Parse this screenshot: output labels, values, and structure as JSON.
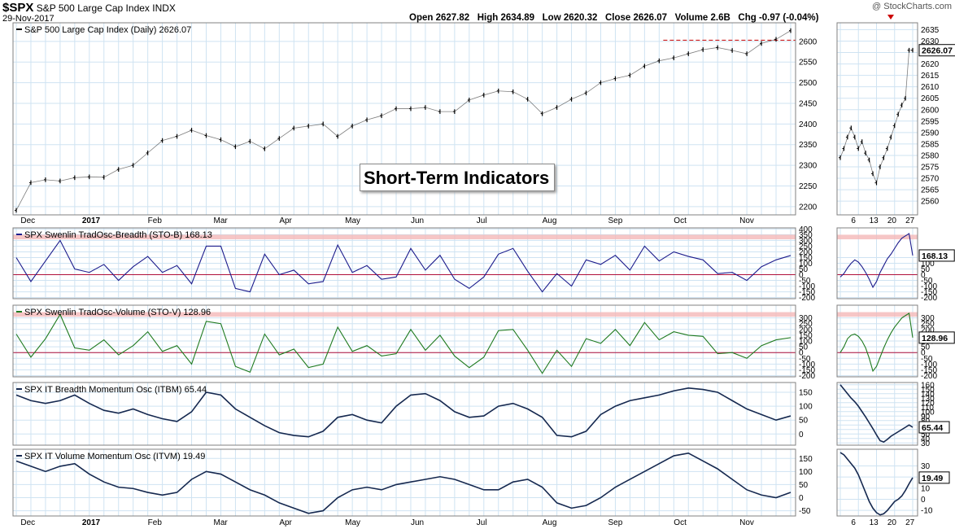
{
  "header": {
    "symbol": "$SPX",
    "name": "S&P 500 Large Cap Index",
    "exchange": "INDX",
    "date": "29-Nov-2017",
    "watermark": "@ StockCharts.com",
    "quote": "Open 2627.82   High 2634.89   Low 2620.32   Close 2626.07   Volume 2.6B   Chg -0.97 (-0.04%)"
  },
  "callout_text": "Short-Term Indicators",
  "colors": {
    "grid": "#cfe3f2",
    "panel_border": "#808080",
    "price": "#000000",
    "sto_b": "#1c1c8c",
    "sto_v": "#1f7a1f",
    "momentum": "#15284f",
    "zero_line": "#b0103a",
    "band": "#f4b8b8",
    "resistance": "#cc0000",
    "down_marker": "#cc0000"
  },
  "chart_data": [
    {
      "id": "price",
      "type": "line",
      "title": "S&P 500 Large Cap Index (Daily) 2626.07",
      "ylim": [
        2180,
        2645
      ],
      "yticks": [
        2200,
        2250,
        2300,
        2350,
        2400,
        2450,
        2500,
        2550,
        2600
      ],
      "value_label": "",
      "resistance_level": 2603,
      "x_labels": [
        "Dec",
        "2017",
        "Feb",
        "Mar",
        "Apr",
        "May",
        "Jun",
        "Jul",
        "Aug",
        "Sep",
        "Oct",
        "Nov"
      ],
      "x_label_pos": [
        0.3,
        4.5,
        9.0,
        13.5,
        18.0,
        22.5,
        27.0,
        31.5,
        36.0,
        40.5,
        45.0,
        49.5
      ],
      "x": [
        0,
        1,
        2,
        3,
        4,
        5,
        6,
        7,
        8,
        9,
        10,
        11,
        12,
        13,
        14,
        15,
        16,
        17,
        18,
        19,
        20,
        21,
        22,
        23,
        24,
        25,
        26,
        27,
        28,
        29,
        30,
        31,
        32,
        33,
        34,
        35,
        36,
        37,
        38,
        39,
        40,
        41,
        42,
        43,
        44,
        45,
        46,
        47,
        48,
        49,
        50,
        51,
        52,
        53
      ],
      "values": [
        2191,
        2258,
        2265,
        2262,
        2270,
        2272,
        2271,
        2290,
        2300,
        2330,
        2360,
        2370,
        2385,
        2372,
        2362,
        2345,
        2358,
        2340,
        2365,
        2390,
        2395,
        2400,
        2370,
        2395,
        2410,
        2420,
        2437,
        2437,
        2440,
        2430,
        2430,
        2458,
        2470,
        2480,
        2478,
        2460,
        2425,
        2440,
        2460,
        2475,
        2500,
        2510,
        2518,
        2540,
        2553,
        2560,
        2570,
        2580,
        2585,
        2578,
        2570,
        2595,
        2605,
        2626
      ]
    },
    {
      "id": "price_zoom",
      "type": "line",
      "ylim": [
        2554,
        2638
      ],
      "yticks": [
        2560,
        2565,
        2570,
        2575,
        2580,
        2585,
        2590,
        2595,
        2600,
        2605,
        2610,
        2615,
        2620,
        2625,
        2630,
        2635
      ],
      "value_label": "2626.07",
      "x_labels": [
        "6",
        "13",
        "20",
        "27"
      ],
      "x_label_pos": [
        3,
        8,
        13,
        18
      ],
      "x": [
        0,
        1,
        2,
        3,
        4,
        5,
        6,
        7,
        8,
        9,
        10,
        11,
        12,
        13,
        14,
        15,
        16,
        17,
        18,
        19,
        20
      ],
      "values": [
        2579,
        2583,
        2588,
        2592,
        2588,
        2583,
        2586,
        2581,
        2578,
        2572,
        2568,
        2575,
        2579,
        2583,
        2588,
        2593,
        2598,
        2602,
        2605,
        2626,
        2626
      ]
    },
    {
      "id": "sto_b",
      "type": "line",
      "title": "SPX Swenlin TradOsc-Breadth (STO-B) 168.13",
      "ylim": [
        -210,
        410
      ],
      "yticks": [
        -200,
        -150,
        -100,
        -50,
        0,
        50,
        100,
        150,
        200,
        250,
        300,
        350,
        400
      ],
      "band": [
        310,
        350
      ],
      "value_label": "",
      "x": [
        0,
        1,
        2,
        3,
        4,
        5,
        6,
        7,
        8,
        9,
        10,
        11,
        12,
        13,
        14,
        15,
        16,
        17,
        18,
        19,
        20,
        21,
        22,
        23,
        24,
        25,
        26,
        27,
        28,
        29,
        30,
        31,
        32,
        33,
        34,
        35,
        36,
        37,
        38,
        39,
        40,
        41,
        42,
        43,
        44,
        45,
        46,
        47,
        48,
        49,
        50,
        51,
        52,
        53
      ],
      "values": [
        150,
        -60,
        120,
        300,
        50,
        20,
        90,
        -50,
        70,
        160,
        20,
        80,
        -80,
        250,
        250,
        -120,
        -150,
        180,
        0,
        40,
        -80,
        -60,
        260,
        20,
        80,
        -40,
        -20,
        230,
        40,
        170,
        -40,
        -120,
        -20,
        180,
        230,
        30,
        -150,
        10,
        -100,
        130,
        90,
        170,
        40,
        250,
        120,
        200,
        160,
        130,
        10,
        20,
        -50,
        70,
        130,
        168
      ]
    },
    {
      "id": "sto_b_zoom",
      "type": "line",
      "ylim": [
        -210,
        410
      ],
      "yticks": [
        -200,
        -150,
        -100,
        -50,
        0,
        50,
        100,
        150
      ],
      "band": [
        310,
        350
      ],
      "value_label": "168.13",
      "x": [
        0,
        1,
        2,
        3,
        4,
        5,
        6,
        7,
        8,
        9,
        10,
        11,
        12,
        13,
        14,
        15,
        16,
        17,
        18,
        19,
        20
      ],
      "values": [
        -20,
        10,
        60,
        100,
        130,
        110,
        70,
        20,
        -40,
        -110,
        -60,
        20,
        80,
        140,
        180,
        230,
        280,
        320,
        340,
        360,
        168
      ]
    },
    {
      "id": "sto_v",
      "type": "line",
      "title": "SPX Swenlin TradOsc-Volume (STO-V) 128.96",
      "ylim": [
        -210,
        410
      ],
      "yticks": [
        -200,
        -150,
        -100,
        -50,
        0,
        50,
        100,
        150,
        200,
        250,
        300
      ],
      "band": [
        310,
        350
      ],
      "value_label": "",
      "x": [
        0,
        1,
        2,
        3,
        4,
        5,
        6,
        7,
        8,
        9,
        10,
        11,
        12,
        13,
        14,
        15,
        16,
        17,
        18,
        19,
        20,
        21,
        22,
        23,
        24,
        25,
        26,
        27,
        28,
        29,
        30,
        31,
        32,
        33,
        34,
        35,
        36,
        37,
        38,
        39,
        40,
        41,
        42,
        43,
        44,
        45,
        46,
        47,
        48,
        49,
        50,
        51,
        52,
        53
      ],
      "values": [
        160,
        -40,
        120,
        330,
        40,
        20,
        110,
        -20,
        60,
        180,
        10,
        60,
        -100,
        270,
        250,
        -120,
        -170,
        160,
        -20,
        30,
        -130,
        -100,
        220,
        10,
        60,
        -30,
        -10,
        200,
        20,
        150,
        -30,
        -130,
        -40,
        190,
        200,
        20,
        -180,
        20,
        -120,
        120,
        80,
        200,
        60,
        260,
        110,
        180,
        150,
        140,
        -10,
        0,
        -50,
        60,
        110,
        129
      ]
    },
    {
      "id": "sto_v_zoom",
      "type": "line",
      "ylim": [
        -210,
        410
      ],
      "yticks": [
        -200,
        -150,
        -100,
        -50,
        0,
        50,
        100,
        150,
        200,
        250,
        300
      ],
      "band": [
        310,
        350
      ],
      "value_label": "128.96",
      "x": [
        0,
        1,
        2,
        3,
        4,
        5,
        6,
        7,
        8,
        9,
        10,
        11,
        12,
        13,
        14,
        15,
        16,
        17,
        18,
        19,
        20
      ],
      "values": [
        0,
        50,
        120,
        150,
        160,
        140,
        100,
        40,
        -50,
        -160,
        -120,
        -40,
        40,
        110,
        170,
        220,
        260,
        300,
        320,
        340,
        129
      ]
    },
    {
      "id": "itbm",
      "type": "line",
      "title": "SPX IT Breadth Momentum Osc (ITBM) 65.44",
      "ylim": [
        -40,
        185
      ],
      "yticks": [
        0,
        50,
        100,
        150
      ],
      "value_label": "",
      "x": [
        0,
        1,
        2,
        3,
        4,
        5,
        6,
        7,
        8,
        9,
        10,
        11,
        12,
        13,
        14,
        15,
        16,
        17,
        18,
        19,
        20,
        21,
        22,
        23,
        24,
        25,
        26,
        27,
        28,
        29,
        30,
        31,
        32,
        33,
        34,
        35,
        36,
        37,
        38,
        39,
        40,
        41,
        42,
        43,
        44,
        45,
        46,
        47,
        48,
        49,
        50,
        51,
        52,
        53
      ],
      "values": [
        140,
        120,
        110,
        120,
        140,
        110,
        85,
        75,
        90,
        70,
        55,
        45,
        80,
        150,
        140,
        90,
        60,
        30,
        5,
        -5,
        -10,
        10,
        60,
        70,
        50,
        40,
        100,
        140,
        145,
        120,
        80,
        60,
        65,
        100,
        110,
        90,
        60,
        -5,
        -10,
        10,
        70,
        100,
        120,
        130,
        140,
        155,
        165,
        160,
        150,
        120,
        90,
        70,
        50,
        65
      ]
    },
    {
      "id": "itbm_zoom",
      "type": "line",
      "ylim": [
        25,
        165
      ],
      "yticks": [
        30,
        40,
        50,
        60,
        70,
        80,
        90,
        100,
        110,
        120,
        130,
        140,
        150,
        160
      ],
      "value_label": "65.44",
      "x": [
        0,
        1,
        2,
        3,
        4,
        5,
        6,
        7,
        8,
        9,
        10,
        11,
        12,
        13,
        14,
        15,
        16,
        17,
        18,
        19,
        20
      ],
      "values": [
        160,
        150,
        140,
        130,
        122,
        112,
        100,
        88,
        75,
        62,
        48,
        35,
        32,
        38,
        45,
        50,
        55,
        60,
        65,
        70,
        65
      ]
    },
    {
      "id": "itvm",
      "type": "line",
      "title": "SPX IT Volume Momentum Osc (ITVM) 19.49",
      "ylim": [
        -70,
        185
      ],
      "yticks": [
        -50,
        0,
        50,
        100,
        150
      ],
      "value_label": "",
      "x": [
        0,
        1,
        2,
        3,
        4,
        5,
        6,
        7,
        8,
        9,
        10,
        11,
        12,
        13,
        14,
        15,
        16,
        17,
        18,
        19,
        20,
        21,
        22,
        23,
        24,
        25,
        26,
        27,
        28,
        29,
        30,
        31,
        32,
        33,
        34,
        35,
        36,
        37,
        38,
        39,
        40,
        41,
        42,
        43,
        44,
        45,
        46,
        47,
        48,
        49,
        50,
        51,
        52,
        53
      ],
      "values": [
        140,
        120,
        100,
        120,
        130,
        90,
        60,
        40,
        35,
        20,
        10,
        20,
        70,
        100,
        90,
        60,
        30,
        10,
        -20,
        -40,
        -60,
        -50,
        0,
        30,
        40,
        30,
        50,
        60,
        70,
        80,
        70,
        50,
        30,
        30,
        60,
        70,
        40,
        -20,
        -40,
        -30,
        0,
        40,
        70,
        100,
        130,
        160,
        170,
        140,
        110,
        70,
        30,
        10,
        0,
        20
      ]
    },
    {
      "id": "itvm_zoom",
      "type": "line",
      "ylim": [
        -15,
        45
      ],
      "yticks": [
        -10,
        0,
        10,
        20,
        30
      ],
      "value_label": "19.49",
      "x": [
        0,
        1,
        2,
        3,
        4,
        5,
        6,
        7,
        8,
        9,
        10,
        11,
        12,
        13,
        14,
        15,
        16,
        17,
        18,
        19,
        20
      ],
      "values": [
        42,
        40,
        36,
        32,
        28,
        22,
        14,
        6,
        -2,
        -8,
        -12,
        -14,
        -13,
        -10,
        -6,
        -2,
        0,
        3,
        8,
        14,
        19.49
      ]
    }
  ]
}
